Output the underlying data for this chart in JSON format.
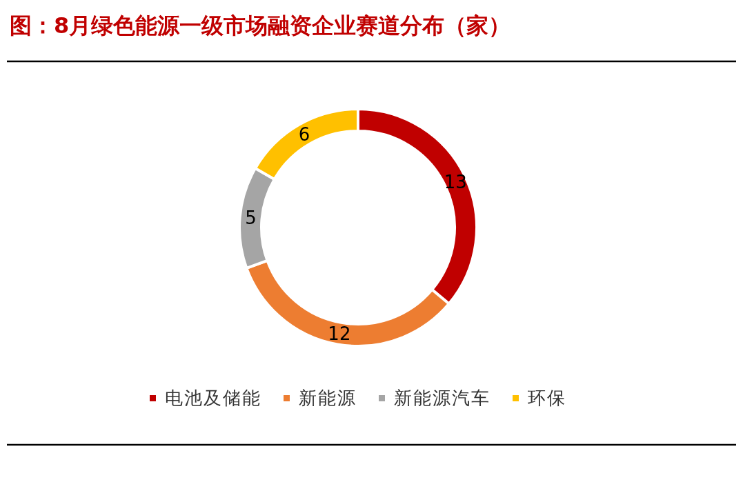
{
  "chart_data": {
    "type": "donut",
    "title": "图：8月绿色能源一级市场融资企业赛道分布（家）",
    "categories": [
      "电池及储能",
      "新能源",
      "新能源汽车",
      "环保"
    ],
    "values": [
      13,
      12,
      5,
      6
    ],
    "colors": [
      "#c00000",
      "#ed7d31",
      "#a5a5a5",
      "#ffc000"
    ],
    "data_labels": true,
    "legend": "bottom"
  }
}
